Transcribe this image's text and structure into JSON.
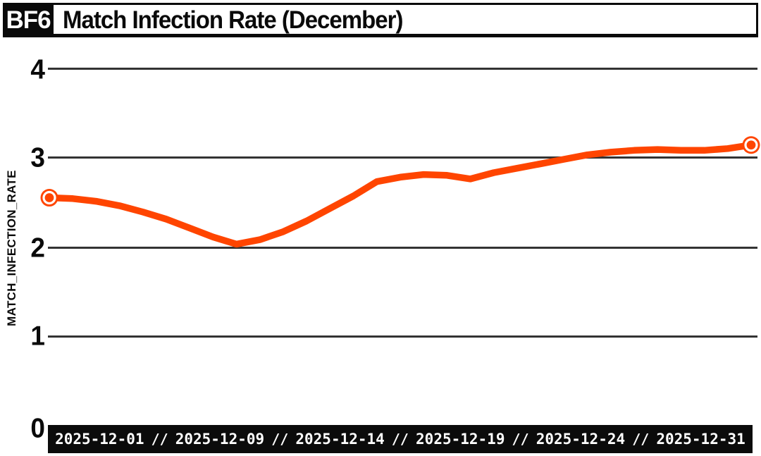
{
  "header": {
    "badge": "BF6",
    "title": "Match Infection Rate (December)"
  },
  "colors": {
    "text": "#0a0a0a",
    "line": "#ff4500",
    "grid": "#333333",
    "bar_bg": "#0b0b0b",
    "bar_text": "#ffffff",
    "background": "#ffffff"
  },
  "chart_data": {
    "type": "line",
    "title": "Match Infection Rate (December)",
    "xlabel": "",
    "ylabel": "MATCH_INFECTION_RATE",
    "ylim": [
      0,
      4
    ],
    "yticks": [
      4,
      3,
      2,
      1,
      0
    ],
    "ytick_labels": [
      "4",
      "3",
      "2",
      "1",
      "0"
    ],
    "grid": true,
    "legend": "none",
    "x_tick_labels": [
      "2025-12-01",
      "2025-12-09",
      "2025-12-14",
      "2025-12-19",
      "2025-12-24",
      "2025-12-31"
    ],
    "x_tick_separator": "//",
    "series": [
      {
        "name": "MATCH_INFECTION_RATE",
        "color": "#ff4500",
        "endpoint_markers": true,
        "days": [
          1,
          2,
          3,
          4,
          5,
          6,
          7,
          8,
          9,
          10,
          11,
          12,
          13,
          14,
          15,
          16,
          17,
          18,
          19,
          20,
          21,
          22,
          23,
          24,
          25,
          26,
          27,
          28,
          29,
          30,
          31
        ],
        "values": [
          2.56,
          2.55,
          2.52,
          2.47,
          2.4,
          2.32,
          2.22,
          2.12,
          2.04,
          2.09,
          2.18,
          2.3,
          2.44,
          2.58,
          2.74,
          2.79,
          2.82,
          2.81,
          2.77,
          2.84,
          2.89,
          2.94,
          2.99,
          3.04,
          3.07,
          3.09,
          3.1,
          3.09,
          3.09,
          3.11,
          3.15
        ]
      }
    ]
  }
}
